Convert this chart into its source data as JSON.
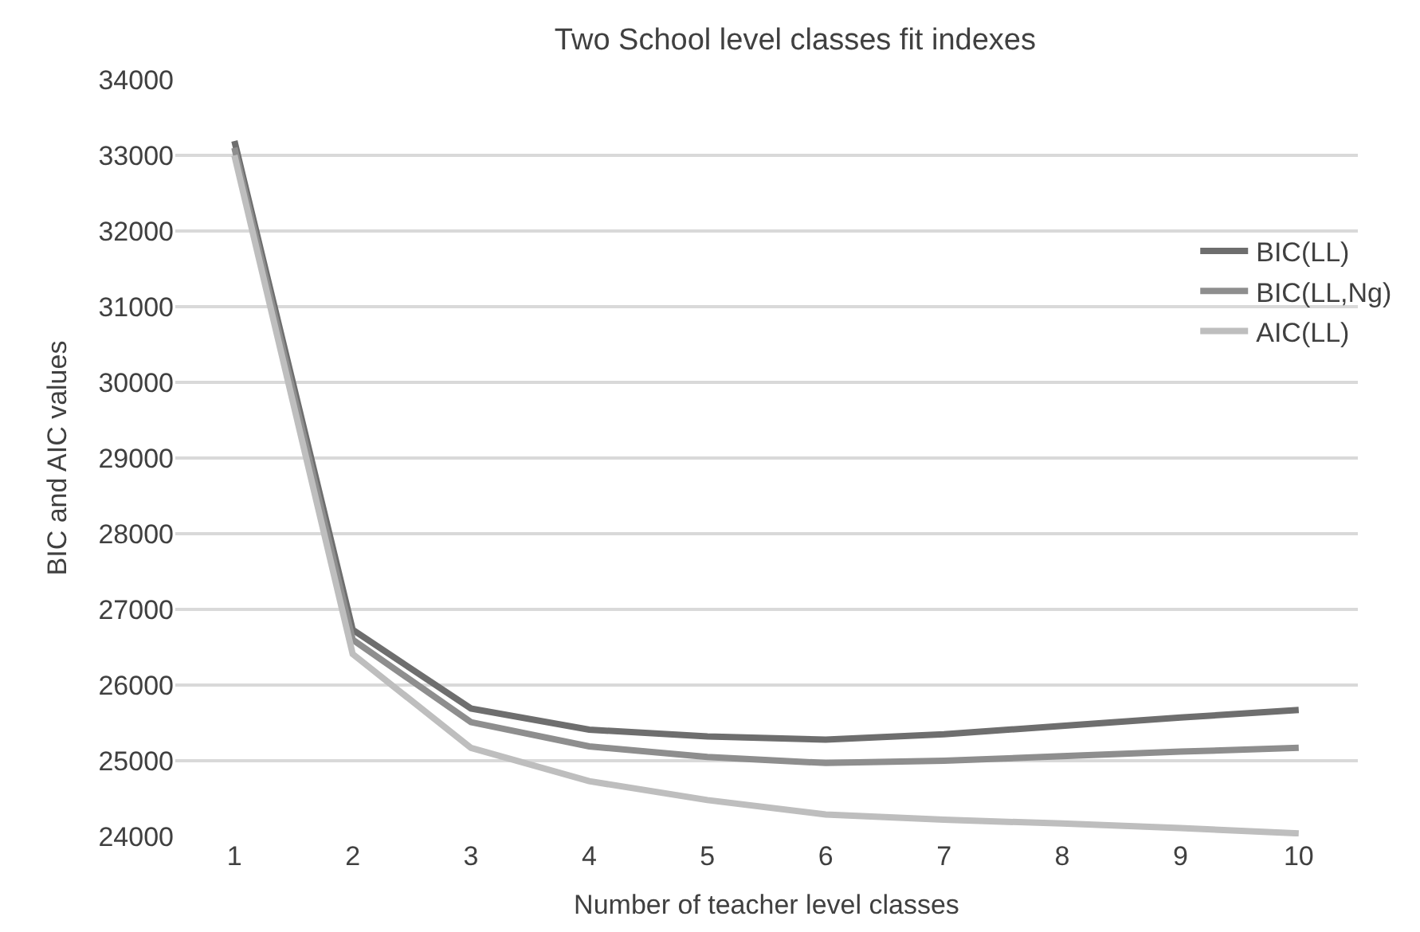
{
  "chart_data": {
    "type": "line",
    "title": "Two School level classes fit indexes",
    "xlabel": "Number of teacher level classes",
    "ylabel": "BIC and AIC values",
    "categories": [
      "1",
      "2",
      "3",
      "4",
      "5",
      "6",
      "7",
      "8",
      "9",
      "10"
    ],
    "series": [
      {
        "name": "BIC(LL)",
        "color": "#6e6e6e",
        "values": [
          33190,
          26730,
          25690,
          25410,
          25320,
          25280,
          25350,
          25460,
          25570,
          25670
        ]
      },
      {
        "name": "BIC(LL,Ng)",
        "color": "#8e8e8e",
        "values": [
          33100,
          26600,
          25510,
          25190,
          25050,
          24970,
          25000,
          25060,
          25120,
          25170
        ]
      },
      {
        "name": "AIC(LL)",
        "color": "#bebebe",
        "values": [
          33000,
          26410,
          25170,
          24730,
          24480,
          24290,
          24220,
          24170,
          24110,
          24040
        ]
      }
    ],
    "ylim": [
      24000,
      34000
    ],
    "yticks": [
      24000,
      25000,
      26000,
      27000,
      28000,
      29000,
      30000,
      31000,
      32000,
      33000,
      34000
    ],
    "grid": "y",
    "legend": "right",
    "marker": "none",
    "line_style": "solid"
  }
}
